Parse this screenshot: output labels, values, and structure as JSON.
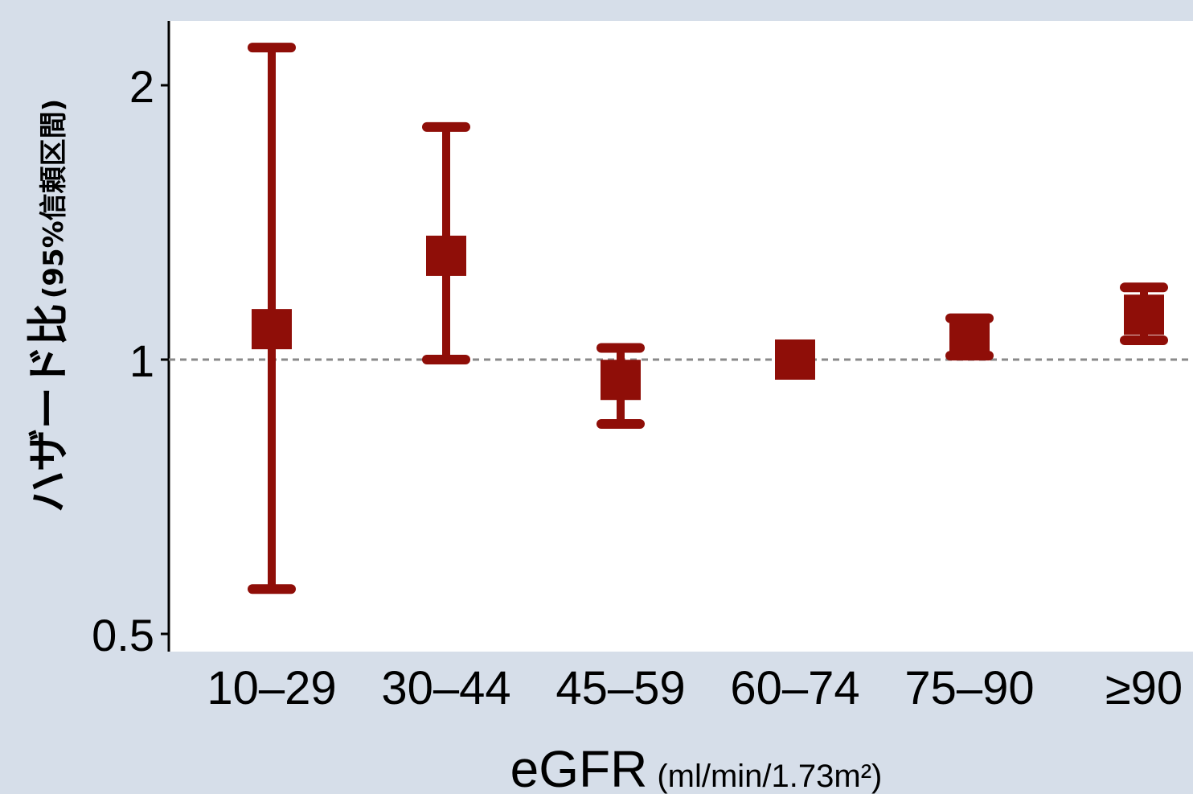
{
  "chart_data": {
    "type": "scatter",
    "subtype": "point-with-error-bars",
    "categories": [
      "10–29",
      "30–44",
      "45–59",
      "60–74",
      "75–90",
      "≥90"
    ],
    "series": [
      {
        "values": [
          1.08,
          1.3,
          0.95,
          1.0,
          1.06,
          1.12
        ],
        "ci_lower": [
          0.56,
          1.0,
          0.85,
          1.0,
          1.01,
          1.05
        ],
        "ci_upper": [
          2.2,
          1.8,
          1.03,
          1.0,
          1.11,
          1.2
        ]
      }
    ],
    "y_scale": "log",
    "ylim": [
      0.5,
      2.3
    ],
    "yticks": [
      0.5,
      1,
      2
    ],
    "ytick_labels": [
      "0.5",
      "1",
      "2"
    ],
    "reference_line": 1,
    "ylabel_main": "ハザード比",
    "ylabel_sub": "(95%信頼区間)",
    "xlabel_main": "eGFR",
    "xlabel_sub": "(ml/min/1.73m²)",
    "grid": false,
    "colors": {
      "marker": "#8f0e08",
      "reference_line": "#8a8a8a",
      "background": "#d6dee9",
      "plot_area": "#ffffff"
    }
  }
}
